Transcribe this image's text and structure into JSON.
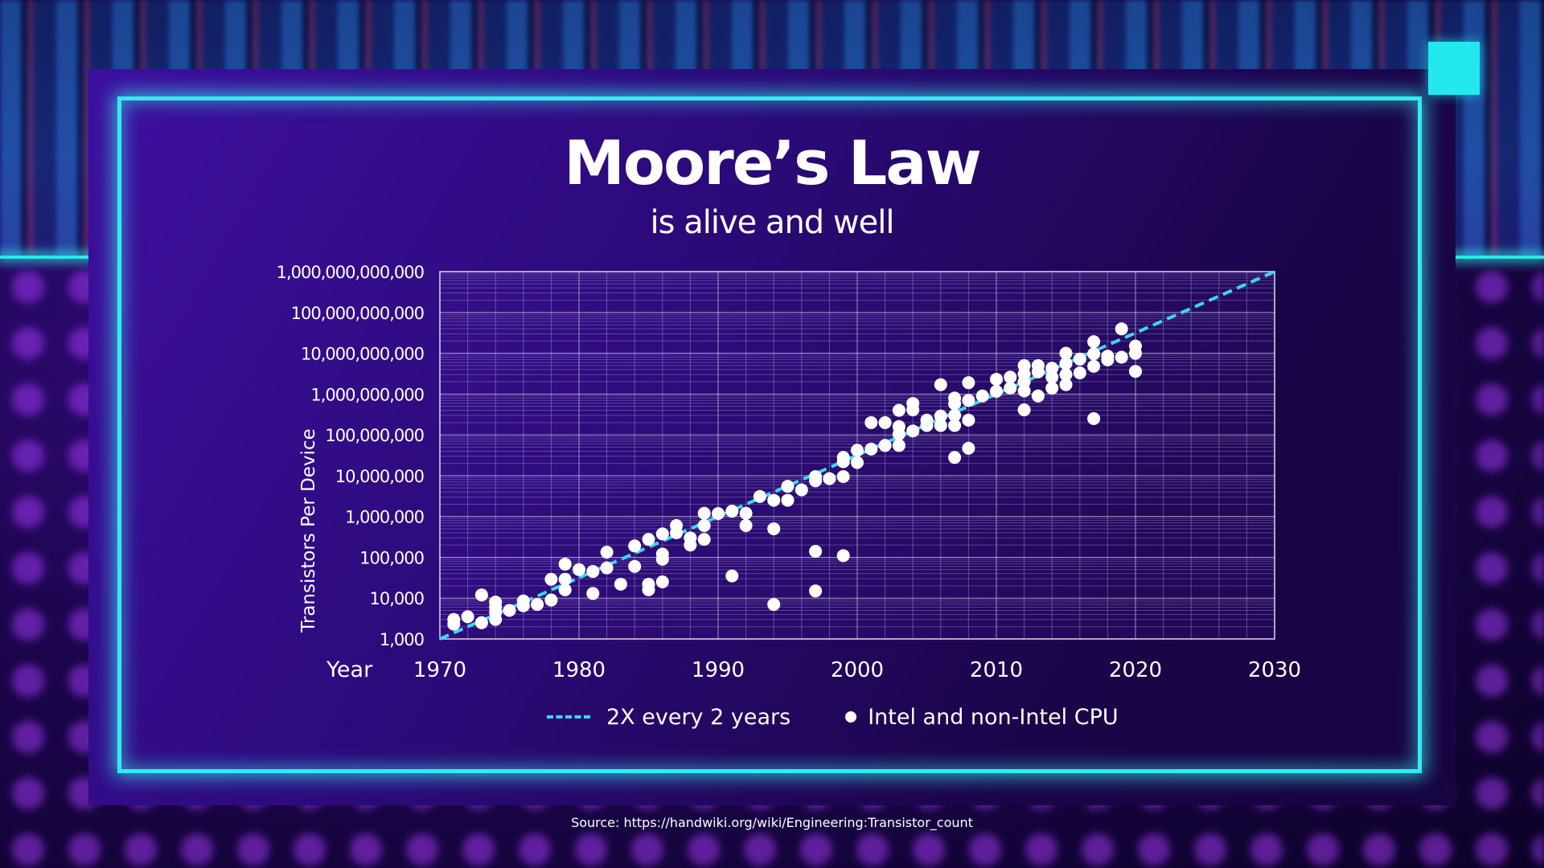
{
  "slide": {
    "title": "Moore’s Law",
    "subtitle": "is alive and well",
    "source": "Source: https://handwiki.org/wiki/Engineering:Transistor_count",
    "colors": {
      "frame": "#34eaf0",
      "trend": "#3ad8ef",
      "dots": "#ffffff",
      "grid": "#c9c0ff"
    }
  },
  "chart_data": {
    "type": "scatter",
    "title": "Moore’s Law",
    "subtitle": "is alive and well",
    "xlabel": "Year",
    "ylabel": "Transistors Per Device",
    "xlim": [
      1970,
      2030
    ],
    "ylim": [
      1000,
      1000000000000
    ],
    "yscale": "log",
    "grid": true,
    "x_ticks": [
      "1970",
      "1980",
      "1990",
      "2000",
      "2010",
      "2020",
      "2030"
    ],
    "y_ticks": [
      "1,000",
      "10,000",
      "100,000",
      "1,000,000",
      "10,000,000",
      "100,000,000",
      "1,000,000,000",
      "10,000,000,000",
      "100,000,000,000",
      "1,000,000,000,000"
    ],
    "legend_position": "bottom",
    "series": [
      {
        "name": "2X every 2 years",
        "kind": "line",
        "style": "dashed",
        "color": "#3ad8ef",
        "x": [
          1970,
          2030
        ],
        "y": [
          1000,
          1000000000000
        ]
      },
      {
        "name": "Intel and non-Intel CPU",
        "kind": "scatter",
        "color": "#ffffff",
        "points": [
          [
            1971,
            2300
          ],
          [
            1971,
            3000
          ],
          [
            1972,
            3500
          ],
          [
            1973,
            2500
          ],
          [
            1973,
            12000
          ],
          [
            1974,
            3000
          ],
          [
            1974,
            4500
          ],
          [
            1974,
            6000
          ],
          [
            1974,
            8000
          ],
          [
            1975,
            5000
          ],
          [
            1976,
            6500
          ],
          [
            1976,
            8500
          ],
          [
            1977,
            7000
          ],
          [
            1978,
            9000
          ],
          [
            1978,
            29000
          ],
          [
            1979,
            16000
          ],
          [
            1979,
            29000
          ],
          [
            1979,
            68000
          ],
          [
            1980,
            50000
          ],
          [
            1981,
            13000
          ],
          [
            1981,
            45000
          ],
          [
            1982,
            55000
          ],
          [
            1982,
            134000
          ],
          [
            1983,
            22000
          ],
          [
            1984,
            60000
          ],
          [
            1984,
            190000
          ],
          [
            1985,
            16000
          ],
          [
            1985,
            22000
          ],
          [
            1985,
            275000
          ],
          [
            1986,
            25000
          ],
          [
            1986,
            90000
          ],
          [
            1986,
            120000
          ],
          [
            1986,
            375000
          ],
          [
            1987,
            400000
          ],
          [
            1987,
            600000
          ],
          [
            1988,
            200000
          ],
          [
            1988,
            300000
          ],
          [
            1989,
            275000
          ],
          [
            1989,
            600000
          ],
          [
            1989,
            1200000
          ],
          [
            1990,
            1180000
          ],
          [
            1991,
            35000
          ],
          [
            1991,
            1350000
          ],
          [
            1992,
            600000
          ],
          [
            1992,
            1200000
          ],
          [
            1993,
            3100000
          ],
          [
            1994,
            7000
          ],
          [
            1994,
            500000
          ],
          [
            1994,
            2500000
          ],
          [
            1995,
            2500000
          ],
          [
            1995,
            5500000
          ],
          [
            1996,
            4500000
          ],
          [
            1997,
            140000
          ],
          [
            1997,
            15000
          ],
          [
            1997,
            7500000
          ],
          [
            1997,
            9500000
          ],
          [
            1998,
            8500000
          ],
          [
            1999,
            110000
          ],
          [
            1999,
            9500000
          ],
          [
            1999,
            22000000
          ],
          [
            1999,
            28000000
          ],
          [
            2000,
            21000000
          ],
          [
            2000,
            42000000
          ],
          [
            2001,
            45000000
          ],
          [
            2001,
            200000000
          ],
          [
            2002,
            55000000
          ],
          [
            2002,
            200000000
          ],
          [
            2003,
            55000000
          ],
          [
            2003,
            105000000
          ],
          [
            2003,
            160000000
          ],
          [
            2003,
            400000000
          ],
          [
            2004,
            125000000
          ],
          [
            2004,
            410000000
          ],
          [
            2004,
            590000000
          ],
          [
            2005,
            230000000
          ],
          [
            2005,
            170000000
          ],
          [
            2006,
            170000000
          ],
          [
            2006,
            290000000
          ],
          [
            2006,
            1700000000
          ],
          [
            2007,
            28000000
          ],
          [
            2007,
            170000000
          ],
          [
            2007,
            300000000
          ],
          [
            2007,
            580000000
          ],
          [
            2007,
            800000000
          ],
          [
            2008,
            47000000
          ],
          [
            2008,
            230000000
          ],
          [
            2008,
            700000000
          ],
          [
            2008,
            1900000000
          ],
          [
            2009,
            900000000
          ],
          [
            2010,
            1170000000
          ],
          [
            2010,
            2300000000
          ],
          [
            2011,
            1400000000
          ],
          [
            2011,
            2600000000
          ],
          [
            2012,
            1200000000
          ],
          [
            2012,
            2000000000
          ],
          [
            2012,
            3100000000
          ],
          [
            2012,
            5000000000
          ],
          [
            2012,
            410000000
          ],
          [
            2013,
            900000000
          ],
          [
            2013,
            3500000000
          ],
          [
            2013,
            5000000000
          ],
          [
            2014,
            1400000000
          ],
          [
            2014,
            2600000000
          ],
          [
            2014,
            4300000000
          ],
          [
            2015,
            1700000000
          ],
          [
            2015,
            3000000000
          ],
          [
            2015,
            5600000000
          ],
          [
            2015,
            10000000000
          ],
          [
            2016,
            3300000000
          ],
          [
            2016,
            7200000000
          ],
          [
            2017,
            250000000
          ],
          [
            2017,
            4800000000
          ],
          [
            2017,
            9700000000
          ],
          [
            2017,
            19200000000
          ],
          [
            2018,
            6900000000
          ],
          [
            2018,
            8500000000
          ],
          [
            2019,
            8000000000
          ],
          [
            2019,
            39500000000
          ],
          [
            2020,
            10000000000
          ],
          [
            2020,
            15000000000
          ],
          [
            2020,
            3600000000
          ]
        ]
      }
    ]
  },
  "legend": {
    "line_label": "2X every 2 years",
    "dot_label": "Intel and non-Intel CPU"
  }
}
